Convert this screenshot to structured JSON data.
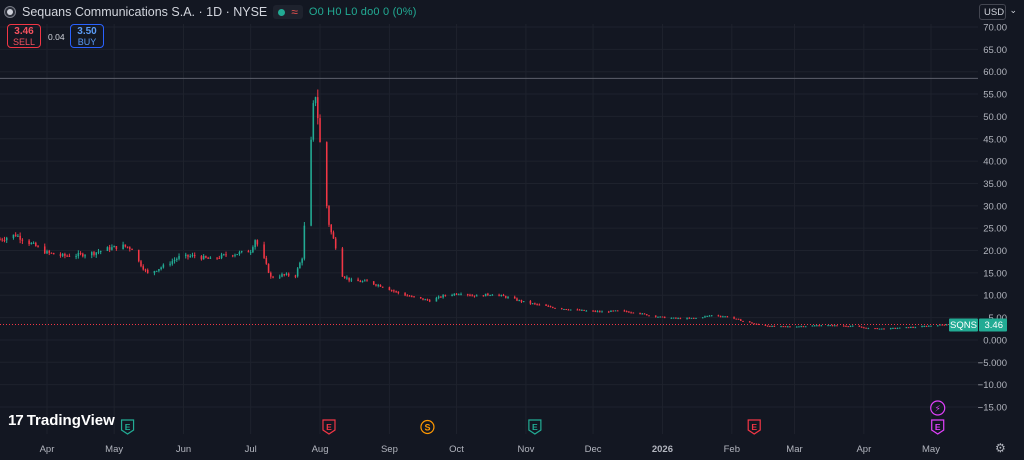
{
  "header": {
    "title": "Sequans Communications S.A. · 1D · NYSE",
    "ohlc_text": "O0 H0 L0 do0 0 (0%)"
  },
  "trade": {
    "sell_price": "3.46",
    "sell_label": "SELL",
    "spread": "0.04",
    "buy_price": "3.50",
    "buy_label": "BUY"
  },
  "currency": "USD",
  "logo_text": "TradingView",
  "colors": {
    "up": "#22ab94",
    "down": "#f23645",
    "background": "#131722",
    "grid": "#1e222d",
    "axis_text": "#b2b5be"
  },
  "chart_data": {
    "type": "candlestick",
    "y_ticks": [
      "70.00",
      "65.00",
      "60.00",
      "55.00",
      "50.00",
      "45.00",
      "40.00",
      "35.00",
      "30.00",
      "25.00",
      "20.00",
      "15.00",
      "10.00",
      "5.00",
      "0.000",
      "−5.000",
      "−10.00",
      "−15.00"
    ],
    "y_tick_values": [
      70,
      65,
      60,
      55,
      50,
      45,
      40,
      35,
      30,
      25,
      20,
      15,
      10,
      5,
      0,
      -5,
      -10,
      -15
    ],
    "ylim": [
      -15,
      70
    ],
    "x_ticks": [
      "Apr",
      "May",
      "Jun",
      "Jul",
      "Aug",
      "Sep",
      "Oct",
      "Nov",
      "Dec",
      "2026",
      "Feb",
      "Mar",
      "Apr",
      "May"
    ],
    "x_tick_dates": [
      "2025-04-01",
      "2025-05-01",
      "2025-06-01",
      "2025-07-01",
      "2025-08-01",
      "2025-09-01",
      "2025-10-01",
      "2025-11-01",
      "2025-12-01",
      "2026-01-01",
      "2026-02-01",
      "2026-03-01",
      "2026-04-01",
      "2026-05-01"
    ],
    "xlim": [
      "2025-03-11",
      "2026-05-22"
    ],
    "close_price": 3.46,
    "close_price_label": "3.46",
    "symbol_label": "SQNS",
    "high_line": 58.5,
    "anchors": [
      [
        "2025-03-11",
        22.5
      ],
      [
        "2025-03-18",
        23.5
      ],
      [
        "2025-03-25",
        21.5
      ],
      [
        "2025-04-01",
        19.5
      ],
      [
        "2025-04-08",
        18.8
      ],
      [
        "2025-04-15",
        19.0
      ],
      [
        "2025-04-22",
        19.5
      ],
      [
        "2025-04-29",
        20.5
      ],
      [
        "2025-05-05",
        21.0
      ],
      [
        "2025-05-09",
        20.5
      ],
      [
        "2025-05-12",
        17.5
      ],
      [
        "2025-05-16",
        14.8
      ],
      [
        "2025-05-23",
        16.5
      ],
      [
        "2025-05-30",
        18.5
      ],
      [
        "2025-06-06",
        18.8
      ],
      [
        "2025-06-13",
        18.0
      ],
      [
        "2025-06-20",
        19.0
      ],
      [
        "2025-06-27",
        19.5
      ],
      [
        "2025-07-01",
        20.0
      ],
      [
        "2025-07-03",
        22.5
      ],
      [
        "2025-07-07",
        18.0
      ],
      [
        "2025-07-10",
        14.0
      ],
      [
        "2025-07-15",
        14.5
      ],
      [
        "2025-07-21",
        14.5
      ],
      [
        "2025-07-24",
        18.5
      ],
      [
        "2025-07-26",
        32.0
      ],
      [
        "2025-07-28",
        44.0
      ],
      [
        "2025-07-29",
        52.0
      ],
      [
        "2025-07-30",
        55.0
      ],
      [
        "2025-07-31",
        50.0
      ],
      [
        "2025-08-01",
        44.0
      ],
      [
        "2025-08-02",
        36.0
      ],
      [
        "2025-08-04",
        30.0
      ],
      [
        "2025-08-05",
        26.0
      ],
      [
        "2025-08-06",
        24.0
      ],
      [
        "2025-08-07",
        22.5
      ],
      [
        "2025-08-08",
        21.0
      ],
      [
        "2025-08-11",
        14.5
      ],
      [
        "2025-08-15",
        13.2
      ],
      [
        "2025-08-22",
        13.0
      ],
      [
        "2025-08-29",
        12.0
      ],
      [
        "2025-09-05",
        10.5
      ],
      [
        "2025-09-12",
        9.5
      ],
      [
        "2025-09-19",
        8.8
      ],
      [
        "2025-09-26",
        10.0
      ],
      [
        "2025-10-03",
        10.5
      ],
      [
        "2025-10-10",
        9.8
      ],
      [
        "2025-10-17",
        10.3
      ],
      [
        "2025-10-24",
        9.5
      ],
      [
        "2025-10-31",
        8.5
      ],
      [
        "2025-11-07",
        7.8
      ],
      [
        "2025-11-14",
        7.2
      ],
      [
        "2025-11-21",
        6.8
      ],
      [
        "2025-11-28",
        6.5
      ],
      [
        "2025-12-05",
        6.3
      ],
      [
        "2025-12-12",
        6.5
      ],
      [
        "2025-12-19",
        6.2
      ],
      [
        "2025-12-26",
        5.5
      ],
      [
        "2026-01-02",
        5.0
      ],
      [
        "2026-01-09",
        4.8
      ],
      [
        "2026-01-16",
        4.9
      ],
      [
        "2026-01-23",
        5.5
      ],
      [
        "2026-01-30",
        5.2
      ],
      [
        "2026-02-06",
        4.2
      ],
      [
        "2026-02-13",
        3.4
      ],
      [
        "2026-02-20",
        3.0
      ],
      [
        "2026-02-27",
        3.0
      ],
      [
        "2026-03-06",
        3.1
      ],
      [
        "2026-03-13",
        3.3
      ],
      [
        "2026-03-20",
        3.2
      ],
      [
        "2026-03-27",
        3.1
      ],
      [
        "2026-04-03",
        2.6
      ],
      [
        "2026-04-10",
        2.5
      ],
      [
        "2026-04-17",
        2.7
      ],
      [
        "2026-04-24",
        2.9
      ],
      [
        "2026-05-01",
        3.2
      ],
      [
        "2026-05-08",
        3.5
      ],
      [
        "2026-05-14",
        3.46
      ]
    ],
    "events": [
      {
        "label": "E",
        "date": "2025-05-07",
        "color": "#22ab94",
        "row": "top"
      },
      {
        "label": "E",
        "date": "2025-08-05",
        "color": "#f23645",
        "row": "top"
      },
      {
        "label": "S",
        "date": "2025-09-18",
        "color": "#ff9800",
        "row": "top"
      },
      {
        "label": "E",
        "date": "2025-11-05",
        "color": "#22ab94",
        "row": "top"
      },
      {
        "label": "E",
        "date": "2026-02-11",
        "color": "#f23645",
        "row": "top"
      },
      {
        "label": "⚡",
        "date": "2026-05-04",
        "color": "#e040fb",
        "row": "upper"
      },
      {
        "label": "E",
        "date": "2026-05-04",
        "color": "#e040fb",
        "row": "top"
      }
    ]
  }
}
